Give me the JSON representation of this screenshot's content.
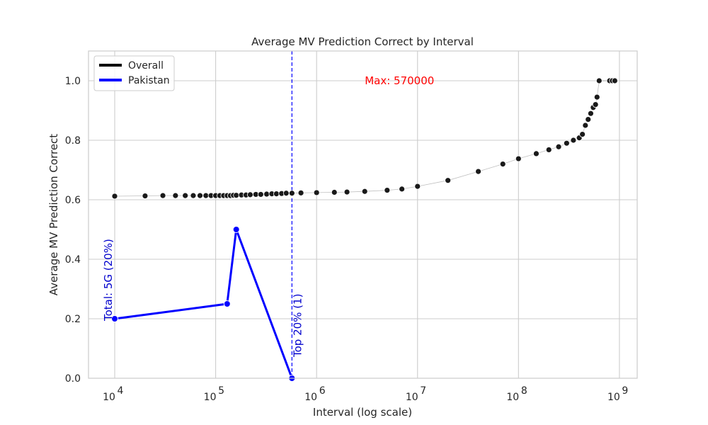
{
  "chart_data": {
    "type": "line",
    "title": "Average MV Prediction Correct by Interval",
    "xlabel": "Interval (log scale)",
    "ylabel": "Average MV Prediction Correct",
    "xscale": "log",
    "xlim": [
      5500,
      1500000000
    ],
    "ylim": [
      0,
      1.1
    ],
    "x_ticks": [
      10000,
      100000,
      1000000,
      10000000,
      100000000,
      1000000000
    ],
    "x_tick_labels": [
      {
        "base": "10",
        "exp": "4"
      },
      {
        "base": "10",
        "exp": "5"
      },
      {
        "base": "10",
        "exp": "6"
      },
      {
        "base": "10",
        "exp": "7"
      },
      {
        "base": "10",
        "exp": "8"
      },
      {
        "base": "10",
        "exp": "9"
      }
    ],
    "y_ticks": [
      0.0,
      0.2,
      0.4,
      0.6,
      0.8,
      1.0
    ],
    "y_tick_labels": [
      "0.0",
      "0.2",
      "0.4",
      "0.6",
      "0.8",
      "1.0"
    ],
    "grid": true,
    "legend_position": "top-left",
    "series": [
      {
        "name": "Overall",
        "color": "#000000",
        "marker": "circle",
        "points": [
          {
            "x": 10000,
            "y": 0.612
          },
          {
            "x": 20000,
            "y": 0.613
          },
          {
            "x": 30000,
            "y": 0.614
          },
          {
            "x": 40000,
            "y": 0.614
          },
          {
            "x": 50000,
            "y": 0.614
          },
          {
            "x": 60000,
            "y": 0.614
          },
          {
            "x": 70000,
            "y": 0.614
          },
          {
            "x": 80000,
            "y": 0.614
          },
          {
            "x": 90000,
            "y": 0.614
          },
          {
            "x": 100000,
            "y": 0.614
          },
          {
            "x": 110000,
            "y": 0.614
          },
          {
            "x": 120000,
            "y": 0.614
          },
          {
            "x": 130000,
            "y": 0.614
          },
          {
            "x": 140000,
            "y": 0.614
          },
          {
            "x": 150000,
            "y": 0.615
          },
          {
            "x": 160000,
            "y": 0.615
          },
          {
            "x": 180000,
            "y": 0.616
          },
          {
            "x": 200000,
            "y": 0.616
          },
          {
            "x": 220000,
            "y": 0.617
          },
          {
            "x": 250000,
            "y": 0.618
          },
          {
            "x": 280000,
            "y": 0.618
          },
          {
            "x": 320000,
            "y": 0.619
          },
          {
            "x": 360000,
            "y": 0.62
          },
          {
            "x": 400000,
            "y": 0.62
          },
          {
            "x": 450000,
            "y": 0.621
          },
          {
            "x": 500000,
            "y": 0.622
          },
          {
            "x": 570000,
            "y": 0.622
          },
          {
            "x": 700000,
            "y": 0.623
          },
          {
            "x": 1000000,
            "y": 0.624
          },
          {
            "x": 1500000,
            "y": 0.625
          },
          {
            "x": 2000000,
            "y": 0.626
          },
          {
            "x": 3000000,
            "y": 0.628
          },
          {
            "x": 5000000,
            "y": 0.632
          },
          {
            "x": 7000000,
            "y": 0.636
          },
          {
            "x": 10000000,
            "y": 0.645
          },
          {
            "x": 20000000,
            "y": 0.665
          },
          {
            "x": 40000000,
            "y": 0.695
          },
          {
            "x": 70000000,
            "y": 0.72
          },
          {
            "x": 100000000,
            "y": 0.738
          },
          {
            "x": 150000000,
            "y": 0.755
          },
          {
            "x": 200000000,
            "y": 0.768
          },
          {
            "x": 250000000,
            "y": 0.778
          },
          {
            "x": 300000000,
            "y": 0.79
          },
          {
            "x": 350000000,
            "y": 0.8
          },
          {
            "x": 400000000,
            "y": 0.808
          },
          {
            "x": 430000000,
            "y": 0.82
          },
          {
            "x": 460000000,
            "y": 0.85
          },
          {
            "x": 490000000,
            "y": 0.87
          },
          {
            "x": 520000000,
            "y": 0.89
          },
          {
            "x": 550000000,
            "y": 0.91
          },
          {
            "x": 580000000,
            "y": 0.92
          },
          {
            "x": 600000000,
            "y": 0.945
          },
          {
            "x": 630000000,
            "y": 1.0
          },
          {
            "x": 800000000,
            "y": 1.0
          },
          {
            "x": 850000000,
            "y": 1.0
          },
          {
            "x": 900000000,
            "y": 1.0
          }
        ]
      },
      {
        "name": "Pakistan",
        "color": "#0000ff",
        "marker": "circle",
        "points": [
          {
            "x": 10000,
            "y": 0.2
          },
          {
            "x": 130000,
            "y": 0.25
          },
          {
            "x": 160000,
            "y": 0.5
          },
          {
            "x": 570000,
            "y": 0.0
          }
        ]
      }
    ],
    "reference_line": {
      "x": 570000,
      "color": "#0000ff",
      "style": "dashed"
    },
    "annotations": {
      "max": {
        "text": "Max: 570000",
        "x": 3000000,
        "y": 1.0,
        "color": "#ff0000"
      },
      "total": {
        "text": "Total: 5G (20%)",
        "x": 10000,
        "y": 0.2,
        "color": "#0000cc"
      },
      "top": {
        "text": "Top 20% (1)",
        "x": 570000,
        "y": 0.1,
        "color": "#0000cc"
      }
    }
  }
}
